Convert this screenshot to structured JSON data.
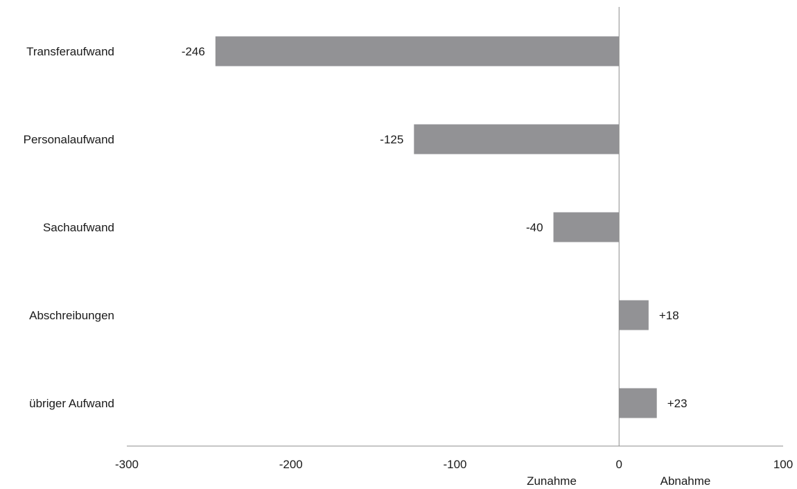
{
  "chart_data": {
    "type": "bar",
    "orientation": "horizontal",
    "categories": [
      "Transferaufwand",
      "Personalaufwand",
      "Sachaufwand",
      "Abschreibungen",
      "übriger Aufwand"
    ],
    "values": [
      -246,
      -125,
      -40,
      18,
      23
    ],
    "value_labels": [
      "-246",
      "-125",
      "-40",
      "+18",
      "+23"
    ],
    "xlim": [
      -300,
      100
    ],
    "xticks": [
      -300,
      -200,
      -100,
      0,
      100
    ],
    "xtick_labels": [
      "-300",
      "-200",
      "-100",
      "0",
      "100"
    ],
    "annotations": {
      "negative_side": "Zunahme",
      "positive_side": "Abnahme"
    },
    "bar_color": "#929295",
    "axis_color": "#8c8c8c",
    "grid": false,
    "legend": "none"
  }
}
